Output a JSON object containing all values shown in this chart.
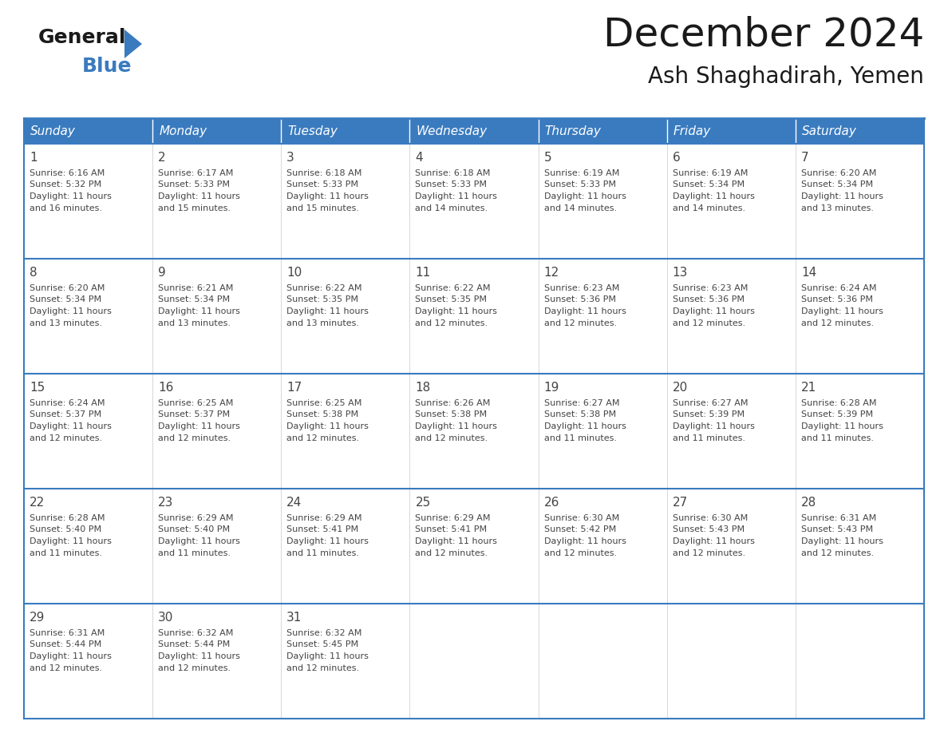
{
  "title": "December 2024",
  "subtitle": "Ash Shaghadirah, Yemen",
  "header_color": "#3a7bbf",
  "header_text_color": "#ffffff",
  "cell_bg_color": "#ffffff",
  "border_color": "#3a7bbf",
  "grid_line_color": "#b0b0b0",
  "day_headers": [
    "Sunday",
    "Monday",
    "Tuesday",
    "Wednesday",
    "Thursday",
    "Friday",
    "Saturday"
  ],
  "days": [
    {
      "day": 1,
      "col": 0,
      "row": 0,
      "sunrise": "6:16 AM",
      "sunset": "5:32 PM",
      "daylight": "11 hours and 16 minutes."
    },
    {
      "day": 2,
      "col": 1,
      "row": 0,
      "sunrise": "6:17 AM",
      "sunset": "5:33 PM",
      "daylight": "11 hours and 15 minutes."
    },
    {
      "day": 3,
      "col": 2,
      "row": 0,
      "sunrise": "6:18 AM",
      "sunset": "5:33 PM",
      "daylight": "11 hours and 15 minutes."
    },
    {
      "day": 4,
      "col": 3,
      "row": 0,
      "sunrise": "6:18 AM",
      "sunset": "5:33 PM",
      "daylight": "11 hours and 14 minutes."
    },
    {
      "day": 5,
      "col": 4,
      "row": 0,
      "sunrise": "6:19 AM",
      "sunset": "5:33 PM",
      "daylight": "11 hours and 14 minutes."
    },
    {
      "day": 6,
      "col": 5,
      "row": 0,
      "sunrise": "6:19 AM",
      "sunset": "5:34 PM",
      "daylight": "11 hours and 14 minutes."
    },
    {
      "day": 7,
      "col": 6,
      "row": 0,
      "sunrise": "6:20 AM",
      "sunset": "5:34 PM",
      "daylight": "11 hours and 13 minutes."
    },
    {
      "day": 8,
      "col": 0,
      "row": 1,
      "sunrise": "6:20 AM",
      "sunset": "5:34 PM",
      "daylight": "11 hours and 13 minutes."
    },
    {
      "day": 9,
      "col": 1,
      "row": 1,
      "sunrise": "6:21 AM",
      "sunset": "5:34 PM",
      "daylight": "11 hours and 13 minutes."
    },
    {
      "day": 10,
      "col": 2,
      "row": 1,
      "sunrise": "6:22 AM",
      "sunset": "5:35 PM",
      "daylight": "11 hours and 13 minutes."
    },
    {
      "day": 11,
      "col": 3,
      "row": 1,
      "sunrise": "6:22 AM",
      "sunset": "5:35 PM",
      "daylight": "11 hours and 12 minutes."
    },
    {
      "day": 12,
      "col": 4,
      "row": 1,
      "sunrise": "6:23 AM",
      "sunset": "5:36 PM",
      "daylight": "11 hours and 12 minutes."
    },
    {
      "day": 13,
      "col": 5,
      "row": 1,
      "sunrise": "6:23 AM",
      "sunset": "5:36 PM",
      "daylight": "11 hours and 12 minutes."
    },
    {
      "day": 14,
      "col": 6,
      "row": 1,
      "sunrise": "6:24 AM",
      "sunset": "5:36 PM",
      "daylight": "11 hours and 12 minutes."
    },
    {
      "day": 15,
      "col": 0,
      "row": 2,
      "sunrise": "6:24 AM",
      "sunset": "5:37 PM",
      "daylight": "11 hours and 12 minutes."
    },
    {
      "day": 16,
      "col": 1,
      "row": 2,
      "sunrise": "6:25 AM",
      "sunset": "5:37 PM",
      "daylight": "11 hours and 12 minutes."
    },
    {
      "day": 17,
      "col": 2,
      "row": 2,
      "sunrise": "6:25 AM",
      "sunset": "5:38 PM",
      "daylight": "11 hours and 12 minutes."
    },
    {
      "day": 18,
      "col": 3,
      "row": 2,
      "sunrise": "6:26 AM",
      "sunset": "5:38 PM",
      "daylight": "11 hours and 12 minutes."
    },
    {
      "day": 19,
      "col": 4,
      "row": 2,
      "sunrise": "6:27 AM",
      "sunset": "5:38 PM",
      "daylight": "11 hours and 11 minutes."
    },
    {
      "day": 20,
      "col": 5,
      "row": 2,
      "sunrise": "6:27 AM",
      "sunset": "5:39 PM",
      "daylight": "11 hours and 11 minutes."
    },
    {
      "day": 21,
      "col": 6,
      "row": 2,
      "sunrise": "6:28 AM",
      "sunset": "5:39 PM",
      "daylight": "11 hours and 11 minutes."
    },
    {
      "day": 22,
      "col": 0,
      "row": 3,
      "sunrise": "6:28 AM",
      "sunset": "5:40 PM",
      "daylight": "11 hours and 11 minutes."
    },
    {
      "day": 23,
      "col": 1,
      "row": 3,
      "sunrise": "6:29 AM",
      "sunset": "5:40 PM",
      "daylight": "11 hours and 11 minutes."
    },
    {
      "day": 24,
      "col": 2,
      "row": 3,
      "sunrise": "6:29 AM",
      "sunset": "5:41 PM",
      "daylight": "11 hours and 11 minutes."
    },
    {
      "day": 25,
      "col": 3,
      "row": 3,
      "sunrise": "6:29 AM",
      "sunset": "5:41 PM",
      "daylight": "11 hours and 12 minutes."
    },
    {
      "day": 26,
      "col": 4,
      "row": 3,
      "sunrise": "6:30 AM",
      "sunset": "5:42 PM",
      "daylight": "11 hours and 12 minutes."
    },
    {
      "day": 27,
      "col": 5,
      "row": 3,
      "sunrise": "6:30 AM",
      "sunset": "5:43 PM",
      "daylight": "11 hours and 12 minutes."
    },
    {
      "day": 28,
      "col": 6,
      "row": 3,
      "sunrise": "6:31 AM",
      "sunset": "5:43 PM",
      "daylight": "11 hours and 12 minutes."
    },
    {
      "day": 29,
      "col": 0,
      "row": 4,
      "sunrise": "6:31 AM",
      "sunset": "5:44 PM",
      "daylight": "11 hours and 12 minutes."
    },
    {
      "day": 30,
      "col": 1,
      "row": 4,
      "sunrise": "6:32 AM",
      "sunset": "5:44 PM",
      "daylight": "11 hours and 12 minutes."
    },
    {
      "day": 31,
      "col": 2,
      "row": 4,
      "sunrise": "6:32 AM",
      "sunset": "5:45 PM",
      "daylight": "11 hours and 12 minutes."
    }
  ],
  "num_rows": 5,
  "num_cols": 7,
  "logo_general_color": "#1a1a1a",
  "logo_blue_color": "#3a7bbf",
  "title_fontsize": 36,
  "subtitle_fontsize": 20,
  "day_header_fontsize": 11,
  "day_num_fontsize": 11,
  "cell_text_fontsize": 8
}
